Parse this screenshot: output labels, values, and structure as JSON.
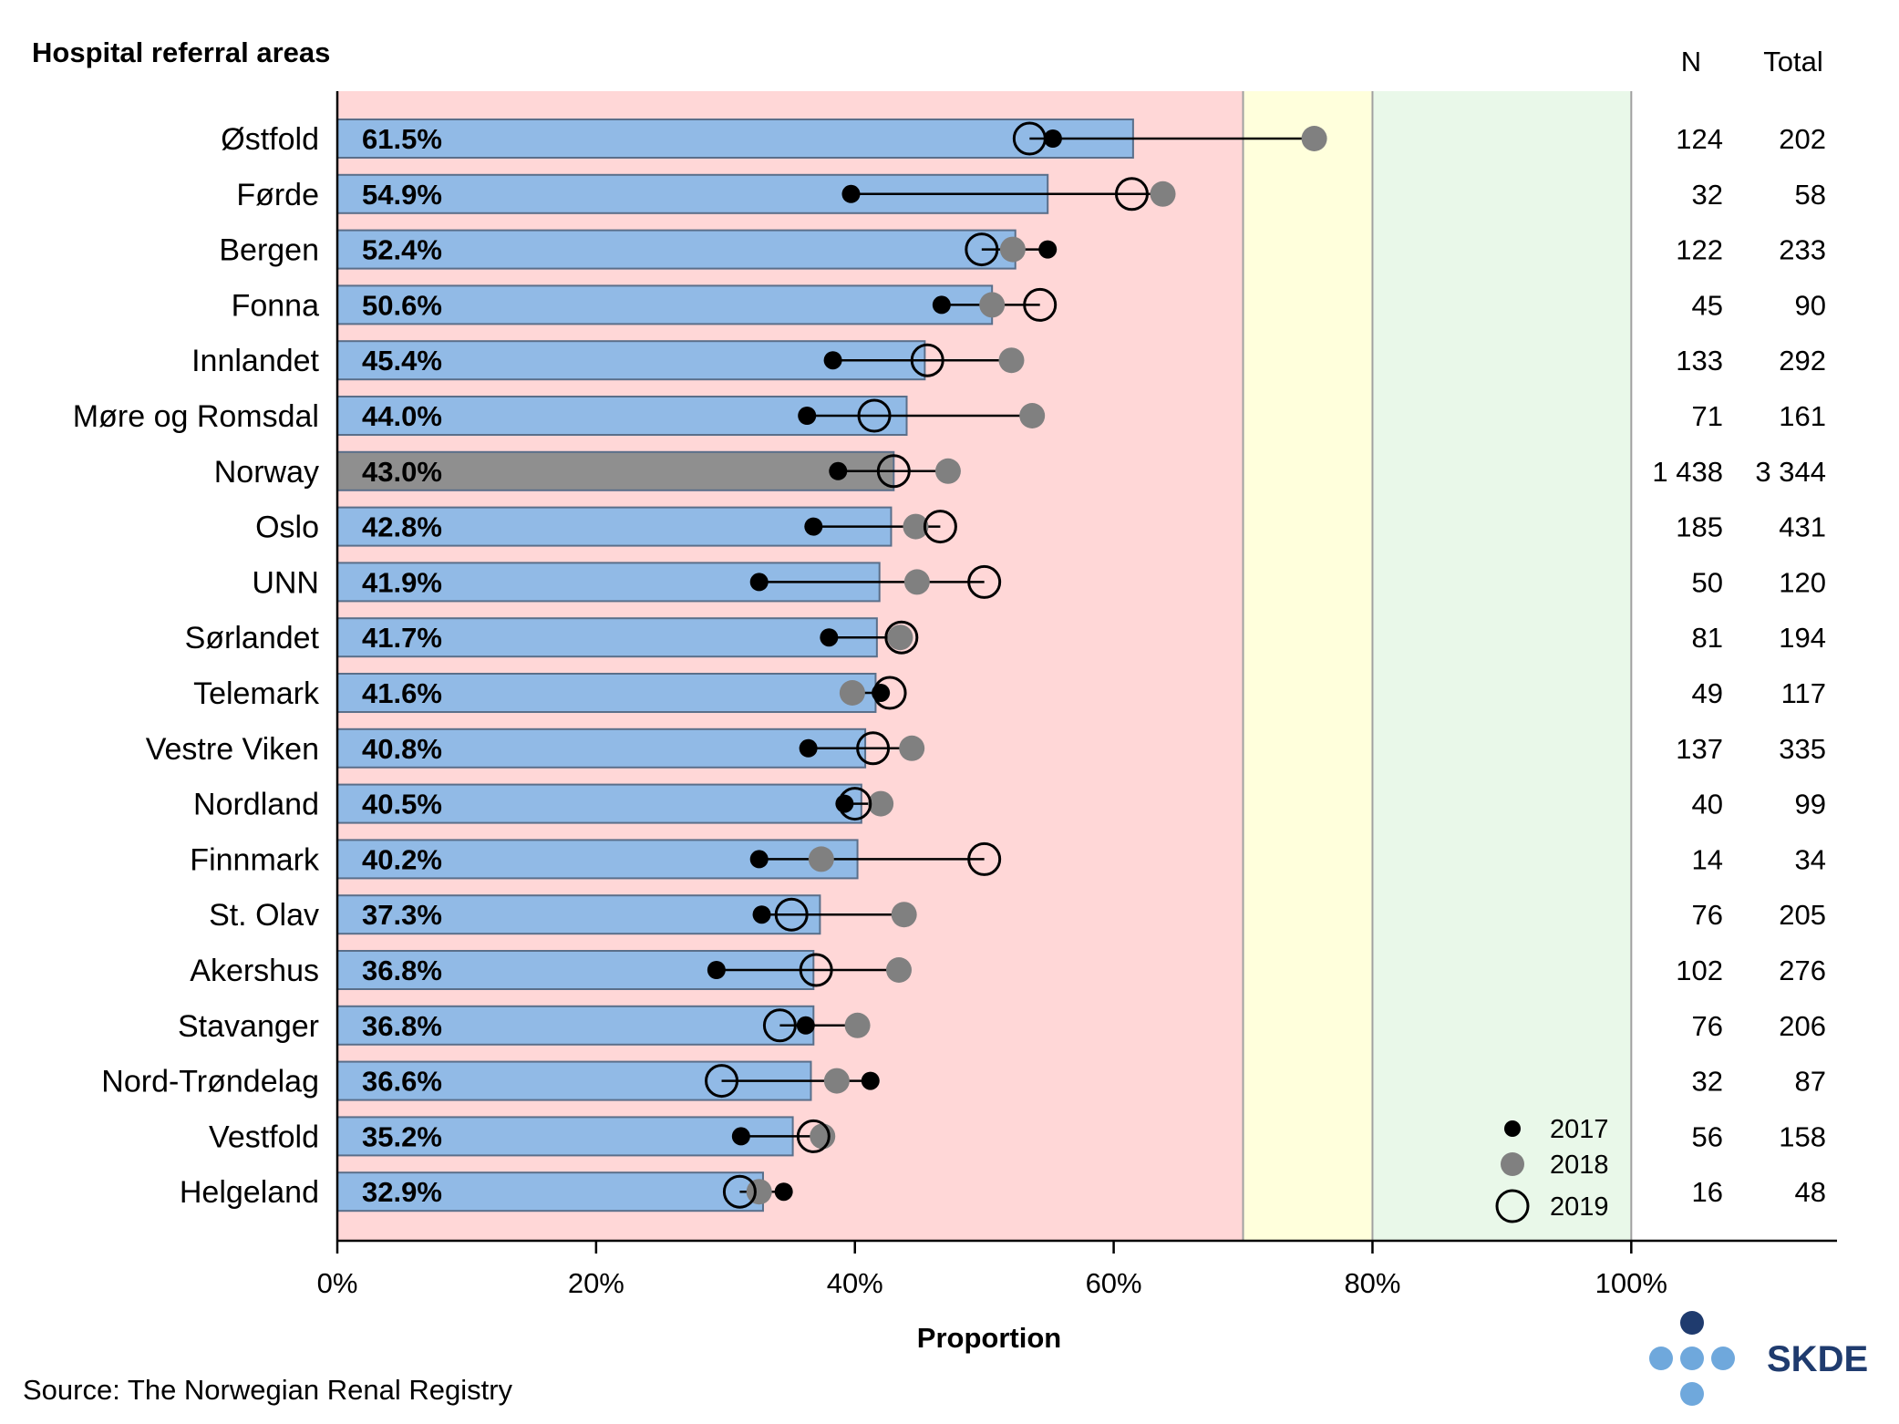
{
  "chart_data": {
    "type": "bar",
    "title": "Hospital referral areas",
    "xlabel": "Proportion",
    "ylabel": "",
    "xlim": [
      0,
      1.159
    ],
    "xticks": [
      0,
      0.2,
      0.4,
      0.6,
      0.8,
      1.0
    ],
    "xtick_labels": [
      "0%",
      "20%",
      "40%",
      "60%",
      "80%",
      "100%"
    ],
    "zones": [
      {
        "from": 0.0,
        "to": 0.7,
        "color": "#ffd7d7"
      },
      {
        "from": 0.7,
        "to": 0.8,
        "color": "#ffffdc"
      },
      {
        "from": 0.8,
        "to": 1.0,
        "color": "#e9f8e9"
      }
    ],
    "column_headers": {
      "n": "N",
      "total": "Total"
    },
    "source": "Source: The Norwegian Renal Registry",
    "legend": [
      {
        "label": "2017",
        "style": "black-dot"
      },
      {
        "label": "2018",
        "style": "grey-dot"
      },
      {
        "label": "2019",
        "style": "open-circle"
      }
    ],
    "categories": [
      {
        "name": "Østfold",
        "value": 0.615,
        "label": "61.5%",
        "y2017": 0.553,
        "y2018": 0.755,
        "y2019": 0.535,
        "n": "124",
        "total": "202",
        "highlight": false
      },
      {
        "name": "Førde",
        "value": 0.549,
        "label": "54.9%",
        "y2017": 0.397,
        "y2018": 0.638,
        "y2019": 0.614,
        "n": "32",
        "total": "58",
        "highlight": false
      },
      {
        "name": "Bergen",
        "value": 0.524,
        "label": "52.4%",
        "y2017": 0.549,
        "y2018": 0.522,
        "y2019": 0.498,
        "n": "122",
        "total": "233",
        "highlight": false
      },
      {
        "name": "Fonna",
        "value": 0.506,
        "label": "50.6%",
        "y2017": 0.467,
        "y2018": 0.506,
        "y2019": 0.543,
        "n": "45",
        "total": "90",
        "highlight": false
      },
      {
        "name": "Innlandet",
        "value": 0.454,
        "label": "45.4%",
        "y2017": 0.383,
        "y2018": 0.521,
        "y2019": 0.456,
        "n": "133",
        "total": "292",
        "highlight": false
      },
      {
        "name": "Møre og Romsdal",
        "value": 0.44,
        "label": "44.0%",
        "y2017": 0.363,
        "y2018": 0.537,
        "y2019": 0.415,
        "n": "71",
        "total": "161",
        "highlight": false
      },
      {
        "name": "Norway",
        "value": 0.43,
        "label": "43.0%",
        "y2017": 0.387,
        "y2018": 0.472,
        "y2019": 0.43,
        "n": "1 438",
        "total": "3 344",
        "highlight": true
      },
      {
        "name": "Oslo",
        "value": 0.428,
        "label": "42.8%",
        "y2017": 0.368,
        "y2018": 0.447,
        "y2019": 0.466,
        "n": "185",
        "total": "431",
        "highlight": false
      },
      {
        "name": "UNN",
        "value": 0.419,
        "label": "41.9%",
        "y2017": 0.326,
        "y2018": 0.448,
        "y2019": 0.5,
        "n": "50",
        "total": "120",
        "highlight": false
      },
      {
        "name": "Sørlandet",
        "value": 0.417,
        "label": "41.7%",
        "y2017": 0.38,
        "y2018": 0.435,
        "y2019": 0.436,
        "n": "81",
        "total": "194",
        "highlight": false
      },
      {
        "name": "Telemark",
        "value": 0.416,
        "label": "41.6%",
        "y2017": 0.42,
        "y2018": 0.398,
        "y2019": 0.427,
        "n": "49",
        "total": "117",
        "highlight": false
      },
      {
        "name": "Vestre Viken",
        "value": 0.408,
        "label": "40.8%",
        "y2017": 0.364,
        "y2018": 0.444,
        "y2019": 0.414,
        "n": "137",
        "total": "335",
        "highlight": false
      },
      {
        "name": "Nordland",
        "value": 0.405,
        "label": "40.5%",
        "y2017": 0.392,
        "y2018": 0.42,
        "y2019": 0.4,
        "n": "40",
        "total": "99",
        "highlight": false
      },
      {
        "name": "Finnmark",
        "value": 0.402,
        "label": "40.2%",
        "y2017": 0.326,
        "y2018": 0.374,
        "y2019": 0.5,
        "n": "14",
        "total": "34",
        "highlight": false
      },
      {
        "name": "St. Olav",
        "value": 0.373,
        "label": "37.3%",
        "y2017": 0.328,
        "y2018": 0.438,
        "y2019": 0.351,
        "n": "76",
        "total": "205",
        "highlight": false
      },
      {
        "name": "Akershus",
        "value": 0.368,
        "label": "36.8%",
        "y2017": 0.293,
        "y2018": 0.434,
        "y2019": 0.37,
        "n": "102",
        "total": "276",
        "highlight": false
      },
      {
        "name": "Stavanger",
        "value": 0.368,
        "label": "36.8%",
        "y2017": 0.362,
        "y2018": 0.402,
        "y2019": 0.342,
        "n": "76",
        "total": "206",
        "highlight": false
      },
      {
        "name": "Nord-Trøndelag",
        "value": 0.366,
        "label": "36.6%",
        "y2017": 0.412,
        "y2018": 0.386,
        "y2019": 0.297,
        "n": "32",
        "total": "87",
        "highlight": false
      },
      {
        "name": "Vestfold",
        "value": 0.352,
        "label": "35.2%",
        "y2017": 0.312,
        "y2018": 0.375,
        "y2019": 0.368,
        "n": "56",
        "total": "158",
        "highlight": false
      },
      {
        "name": "Helgeland",
        "value": 0.329,
        "label": "32.9%",
        "y2017": 0.345,
        "y2018": 0.326,
        "y2019": 0.311,
        "n": "16",
        "total": "48",
        "highlight": false
      }
    ]
  },
  "logo": {
    "text": "SKDE",
    "color": "#1f3b6e",
    "dot_color": "#6fa8dc",
    "dot_dark": "#1f3b6e"
  },
  "colors": {
    "bar": "#91bae6",
    "bar_highlight": "#8f8f8f",
    "bar_edge": "#5a6f8a",
    "dot2017": "#000000",
    "dot2018": "#808080"
  }
}
